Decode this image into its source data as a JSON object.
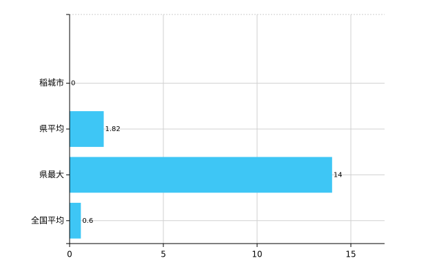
{
  "chart_data": {
    "type": "barh",
    "categories": [
      "稲城市",
      "県平均",
      "県最大",
      "全国平均"
    ],
    "values": [
      0,
      1.82,
      14,
      0.6
    ],
    "color": "#3ec6f5",
    "xlim": [
      0,
      16.8
    ],
    "xticks": [
      0,
      5,
      10,
      15
    ],
    "grid": true
  }
}
